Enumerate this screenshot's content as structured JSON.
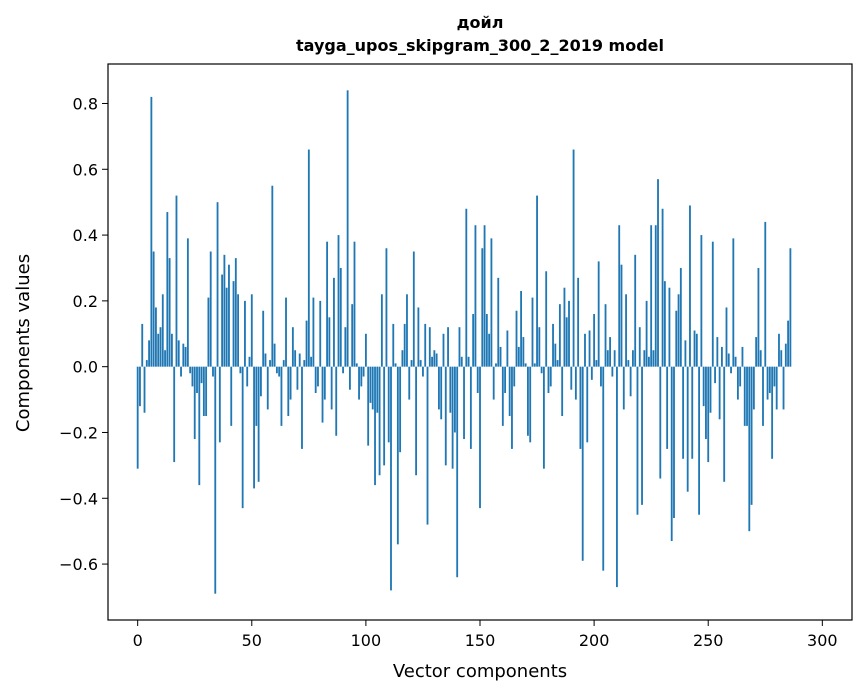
{
  "chart_data": {
    "type": "bar",
    "title": "дойл",
    "subtitle": "tayga_upos_skipgram_300_2_2019 model",
    "xlabel": "Vector components",
    "ylabel": "Components values",
    "xlim": [
      -13,
      313
    ],
    "ylim": [
      -0.77,
      0.92
    ],
    "xticks": [
      0,
      50,
      100,
      150,
      200,
      250,
      300
    ],
    "xtick_labels": [
      "0",
      "50",
      "100",
      "150",
      "200",
      "250",
      "300"
    ],
    "yticks": [
      -0.6,
      -0.4,
      -0.2,
      0.0,
      0.2,
      0.4,
      0.6,
      0.8
    ],
    "ytick_labels": [
      "−0.6",
      "−0.4",
      "−0.2",
      "0.0",
      "0.2",
      "0.4",
      "0.6",
      "0.8"
    ],
    "bar_color": "#1f77b4",
    "grid": false,
    "values": [
      -0.31,
      -0.12,
      0.13,
      -0.14,
      0.02,
      0.08,
      0.82,
      0.35,
      0.18,
      0.1,
      0.12,
      0.22,
      0.05,
      0.47,
      0.33,
      0.1,
      -0.29,
      0.52,
      0.08,
      -0.03,
      0.07,
      0.06,
      0.39,
      -0.02,
      -0.06,
      -0.22,
      -0.08,
      -0.36,
      -0.05,
      -0.15,
      -0.15,
      0.21,
      0.35,
      -0.03,
      -0.69,
      0.5,
      -0.23,
      0.28,
      0.34,
      0.24,
      0.31,
      -0.18,
      0.26,
      0.33,
      0.22,
      -0.02,
      -0.43,
      0.2,
      -0.06,
      0.03,
      0.22,
      -0.37,
      -0.18,
      -0.35,
      -0.09,
      0.17,
      0.04,
      -0.13,
      0.02,
      0.55,
      0.07,
      -0.02,
      -0.03,
      -0.18,
      0.02,
      0.21,
      -0.15,
      -0.1,
      0.12,
      0.05,
      -0.07,
      0.04,
      -0.25,
      0.02,
      0.14,
      0.66,
      0.03,
      0.21,
      -0.08,
      -0.06,
      0.2,
      -0.17,
      -0.1,
      0.38,
      0.15,
      -0.13,
      0.27,
      -0.21,
      0.4,
      0.3,
      -0.02,
      0.12,
      0.84,
      -0.07,
      0.19,
      0.38,
      0.01,
      -0.1,
      -0.06,
      -0.03,
      0.1,
      -0.24,
      -0.11,
      -0.13,
      -0.36,
      -0.14,
      -0.33,
      0.22,
      -0.3,
      0.36,
      -0.23,
      -0.68,
      0.13,
      0.01,
      -0.54,
      -0.26,
      0.05,
      0.13,
      0.22,
      -0.1,
      0.02,
      0.35,
      -0.33,
      0.18,
      0.02,
      -0.03,
      0.13,
      -0.48,
      0.12,
      0.03,
      0.05,
      0.04,
      -0.13,
      -0.16,
      0.1,
      -0.3,
      0.12,
      -0.14,
      -0.31,
      -0.2,
      -0.64,
      0.12,
      0.03,
      -0.22,
      0.48,
      0.03,
      -0.25,
      0.16,
      0.43,
      -0.08,
      -0.43,
      0.36,
      0.43,
      0.16,
      0.1,
      0.39,
      -0.1,
      0.01,
      0.27,
      0.06,
      -0.18,
      -0.08,
      0.11,
      -0.15,
      -0.25,
      -0.06,
      0.17,
      0.06,
      0.23,
      0.09,
      0.01,
      -0.21,
      -0.23,
      0.21,
      0.01,
      0.52,
      0.12,
      -0.02,
      -0.31,
      0.29,
      -0.08,
      -0.06,
      0.13,
      0.07,
      0.02,
      0.19,
      -0.15,
      0.24,
      0.15,
      0.2,
      -0.07,
      0.66,
      -0.1,
      0.27,
      -0.25,
      -0.59,
      0.1,
      -0.23,
      0.11,
      -0.04,
      0.16,
      0.02,
      0.32,
      -0.06,
      -0.62,
      0.19,
      0.05,
      0.09,
      -0.03,
      0.05,
      -0.67,
      0.43,
      0.31,
      -0.13,
      0.22,
      0.02,
      -0.09,
      0.05,
      0.34,
      -0.45,
      0.12,
      -0.42,
      0.05,
      0.2,
      0.03,
      0.43,
      0.05,
      0.43,
      0.57,
      -0.34,
      0.48,
      0.26,
      -0.25,
      0.24,
      -0.53,
      -0.46,
      0.17,
      0.22,
      0.3,
      -0.28,
      0.08,
      -0.38,
      0.49,
      -0.28,
      0.11,
      0.1,
      -0.45,
      0.4,
      -0.12,
      -0.22,
      -0.29,
      -0.14,
      0.38,
      -0.05,
      0.09,
      -0.16,
      0.06,
      -0.35,
      0.18,
      0.04,
      -0.02,
      0.39,
      0.03,
      -0.1,
      -0.06,
      0.06,
      -0.18,
      -0.18,
      -0.5,
      -0.42,
      -0.13,
      0.09,
      0.3,
      0.05,
      -0.18,
      0.44,
      -0.1,
      -0.08,
      -0.28,
      -0.06,
      -0.13,
      0.1,
      0.05,
      -0.13,
      0.07,
      0.14,
      0.36
    ]
  }
}
